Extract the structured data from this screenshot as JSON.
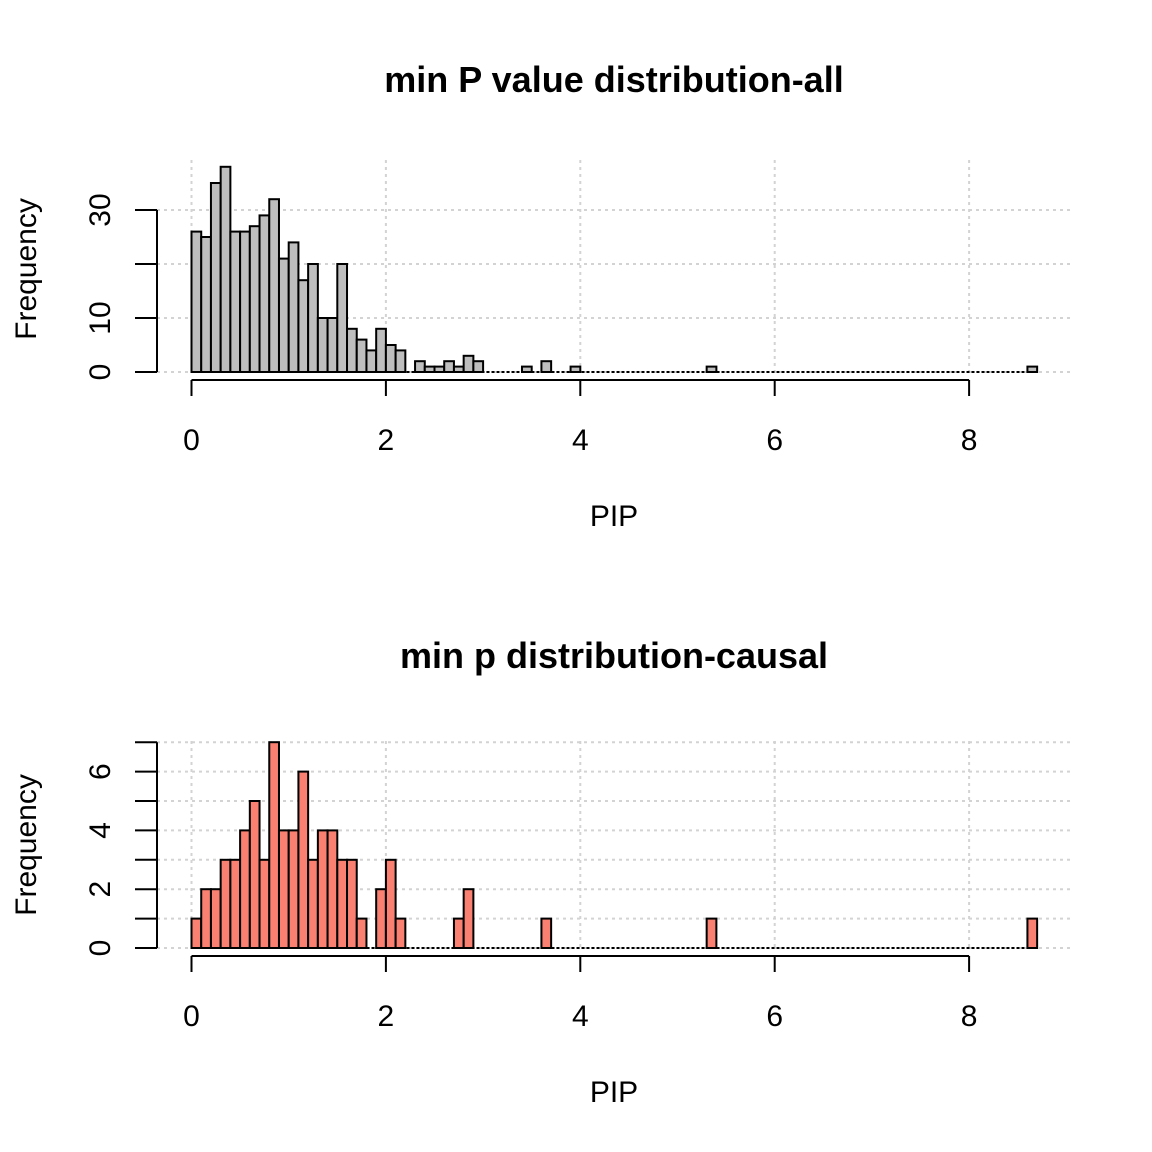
{
  "chart_data": [
    {
      "type": "bar",
      "title": "min P value distribution-all",
      "xlabel": "PIP",
      "ylabel": "Frequency",
      "bar_color": "#bebebe",
      "bin_width": 0.1,
      "xlim": [
        0,
        9
      ],
      "ylim": [
        0,
        39
      ],
      "x_ticks": [
        0,
        2,
        4,
        6,
        8
      ],
      "y_ticks": [
        0,
        10,
        20,
        30
      ],
      "y_tick_labels": [
        "0",
        "10",
        "",
        "30"
      ],
      "grid": true,
      "bin_starts": [
        0,
        0.1,
        0.2,
        0.3,
        0.4,
        0.5,
        0.6,
        0.7,
        0.8,
        0.9,
        1.0,
        1.1,
        1.2,
        1.3,
        1.4,
        1.5,
        1.6,
        1.7,
        1.8,
        1.9,
        2.0,
        2.1,
        2.2,
        2.3,
        2.4,
        2.5,
        2.6,
        2.7,
        2.8,
        2.9,
        3.0,
        3.1,
        3.2,
        3.3,
        3.4,
        3.5,
        3.6,
        3.7,
        3.8,
        3.9,
        4.0,
        4.1,
        4.2,
        4.3,
        4.4,
        4.5,
        4.6,
        4.7,
        4.8,
        4.9,
        5.0,
        5.1,
        5.2,
        5.3,
        5.4,
        5.5,
        5.6,
        5.7,
        5.8,
        5.9,
        6.0,
        6.1,
        6.2,
        6.3,
        6.4,
        6.5,
        6.6,
        6.7,
        6.8,
        6.9,
        7.0,
        7.1,
        7.2,
        7.3,
        7.4,
        7.5,
        7.6,
        7.7,
        7.8,
        7.9,
        8.0,
        8.1,
        8.2,
        8.3,
        8.4,
        8.5,
        8.6
      ],
      "values": [
        26,
        25,
        35,
        38,
        26,
        26,
        27,
        29,
        32,
        21,
        24,
        17,
        20,
        10,
        10,
        20,
        8,
        6,
        4,
        8,
        5,
        4,
        0,
        2,
        1,
        1,
        2,
        1,
        3,
        2,
        0,
        0,
        0,
        0,
        1,
        0,
        2,
        0,
        0,
        1,
        0,
        0,
        0,
        0,
        0,
        0,
        0,
        0,
        0,
        0,
        0,
        0,
        0,
        1,
        0,
        0,
        0,
        0,
        0,
        0,
        0,
        0,
        0,
        0,
        0,
        0,
        0,
        0,
        0,
        0,
        0,
        0,
        0,
        0,
        0,
        0,
        0,
        0,
        0,
        0,
        0,
        0,
        0,
        0,
        0,
        0,
        1
      ]
    },
    {
      "type": "bar",
      "title": "min p distribution-causal",
      "xlabel": "PIP",
      "ylabel": "Frequency",
      "bar_color": "#fa8072",
      "bin_width": 0.1,
      "xlim": [
        0,
        9
      ],
      "ylim": [
        0,
        7
      ],
      "x_ticks": [
        0,
        2,
        4,
        6,
        8
      ],
      "y_ticks": [
        0,
        1,
        2,
        3,
        4,
        5,
        6,
        7
      ],
      "y_tick_labels": [
        "0",
        "",
        "2",
        "",
        "4",
        "",
        "6",
        ""
      ],
      "grid": true,
      "bin_starts": [
        0,
        0.1,
        0.2,
        0.3,
        0.4,
        0.5,
        0.6,
        0.7,
        0.8,
        0.9,
        1.0,
        1.1,
        1.2,
        1.3,
        1.4,
        1.5,
        1.6,
        1.7,
        1.8,
        1.9,
        2.0,
        2.1,
        2.2,
        2.3,
        2.4,
        2.5,
        2.6,
        2.7,
        2.8,
        2.9,
        3.0,
        3.1,
        3.2,
        3.3,
        3.4,
        3.5,
        3.6,
        3.7,
        3.8,
        3.9,
        4.0,
        4.1,
        4.2,
        4.3,
        4.4,
        4.5,
        4.6,
        4.7,
        4.8,
        4.9,
        5.0,
        5.1,
        5.2,
        5.3,
        5.4,
        5.5,
        5.6,
        5.7,
        5.8,
        5.9,
        6.0,
        6.1,
        6.2,
        6.3,
        6.4,
        6.5,
        6.6,
        6.7,
        6.8,
        6.9,
        7.0,
        7.1,
        7.2,
        7.3,
        7.4,
        7.5,
        7.6,
        7.7,
        7.8,
        7.9,
        8.0,
        8.1,
        8.2,
        8.3,
        8.4,
        8.5,
        8.6
      ],
      "values": [
        1,
        2,
        2,
        3,
        3,
        4,
        5,
        3,
        7,
        4,
        4,
        6,
        3,
        4,
        4,
        3,
        3,
        1,
        0,
        2,
        3,
        1,
        0,
        0,
        0,
        0,
        0,
        1,
        2,
        0,
        0,
        0,
        0,
        0,
        0,
        0,
        1,
        0,
        0,
        0,
        0,
        0,
        0,
        0,
        0,
        0,
        0,
        0,
        0,
        0,
        0,
        0,
        0,
        1,
        0,
        0,
        0,
        0,
        0,
        0,
        0,
        0,
        0,
        0,
        0,
        0,
        0,
        0,
        0,
        0,
        0,
        0,
        0,
        0,
        0,
        0,
        0,
        0,
        0,
        0,
        0,
        0,
        0,
        0,
        0,
        0,
        1
      ]
    }
  ]
}
